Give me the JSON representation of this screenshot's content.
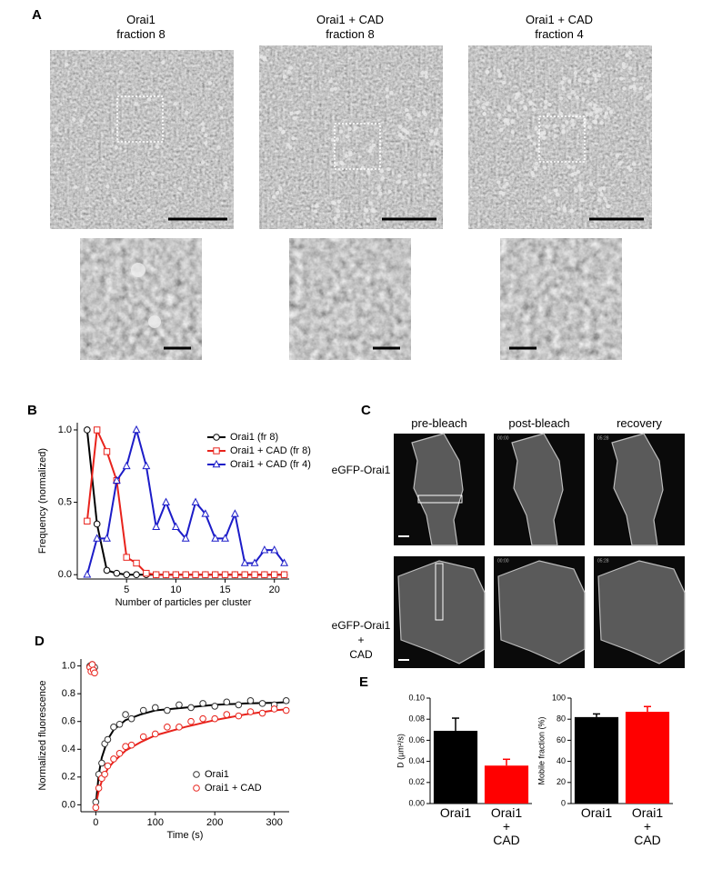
{
  "panel_a": {
    "label": "A",
    "titles": [
      "Orai1\nfraction 8",
      "Orai1 + CAD\nfraction 8",
      "Orai1 + CAD\nfraction 4"
    ]
  },
  "panel_c": {
    "label": "C",
    "columns": [
      "pre-bleach",
      "post-bleach",
      "recovery"
    ],
    "rows": [
      "eGFP-Orai1",
      "eGFP-Orai1\n+\nCAD"
    ],
    "timestamps": [
      "00:00",
      "05:28"
    ]
  },
  "chart_data": [
    {
      "type": "line",
      "panel_label": "B",
      "x_label": "Number of particles per cluster",
      "y_label": "Frequency (normalized)",
      "x": [
        1,
        2,
        3,
        4,
        5,
        6,
        7,
        8,
        9,
        10,
        11,
        12,
        13,
        14,
        15,
        16,
        17,
        18,
        19,
        20,
        21
      ],
      "series": [
        {
          "name": "Orai1 (fr 8)",
          "color": "#000000",
          "marker": "circle",
          "values": [
            1.0,
            0.35,
            0.03,
            0.01,
            0,
            0,
            0,
            0,
            0,
            0,
            0,
            0,
            0,
            0,
            0,
            0,
            0,
            0,
            0,
            0,
            0
          ]
        },
        {
          "name": "Orai1 + CAD (fr 8)",
          "color": "#e8231c",
          "marker": "square",
          "values": [
            0.37,
            1.0,
            0.85,
            0.65,
            0.12,
            0.08,
            0.01,
            0,
            0,
            0,
            0,
            0,
            0,
            0,
            0,
            0,
            0,
            0,
            0,
            0,
            0
          ]
        },
        {
          "name": "Orai1 + CAD (fr 4)",
          "color": "#1c1cc8",
          "marker": "triangle",
          "values": [
            0,
            0.25,
            0.25,
            0.65,
            0.75,
            1.0,
            0.75,
            0.33,
            0.5,
            0.33,
            0.25,
            0.5,
            0.42,
            0.25,
            0.25,
            0.42,
            0.08,
            0.08,
            0.17,
            0.17,
            0.08
          ]
        }
      ],
      "xlim": [
        0,
        21.5
      ],
      "xticks": [
        5,
        10,
        15,
        20
      ],
      "ylim": [
        -0.03,
        1.05
      ],
      "yticks": [
        {
          "value": 0,
          "label": "0.0"
        },
        {
          "value": 0.5,
          "label": "0.5"
        },
        {
          "value": 1,
          "label": "1.0"
        }
      ],
      "legend": "upper right"
    },
    {
      "type": "scatter",
      "panel_label": "D",
      "x_label": "Time (s)",
      "y_label": "Normalized fluorescence",
      "series": [
        {
          "name": "Orai1",
          "color": "#333333",
          "marker": "circle",
          "x": [
            -10,
            -8,
            -6,
            -4,
            -2,
            0,
            5,
            10,
            15,
            20,
            30,
            40,
            50,
            60,
            80,
            100,
            120,
            140,
            160,
            180,
            200,
            220,
            240,
            260,
            280,
            300,
            320
          ],
          "values": [
            1.0,
            0.98,
            1.01,
            0.97,
            0.99,
            0.02,
            0.22,
            0.3,
            0.44,
            0.47,
            0.56,
            0.58,
            0.65,
            0.62,
            0.68,
            0.7,
            0.68,
            0.72,
            0.7,
            0.73,
            0.71,
            0.74,
            0.72,
            0.75,
            0.73,
            0.72,
            0.75
          ]
        },
        {
          "name": "Orai1 + CAD",
          "color": "#e8231c",
          "marker": "circle",
          "x": [
            -10,
            -8,
            -6,
            -4,
            -2,
            0,
            5,
            10,
            15,
            20,
            30,
            40,
            50,
            60,
            80,
            100,
            120,
            140,
            160,
            180,
            200,
            220,
            240,
            260,
            280,
            300,
            320
          ],
          "values": [
            0.99,
            0.96,
            1.01,
            0.97,
            0.95,
            -0.02,
            0.12,
            0.19,
            0.22,
            0.28,
            0.33,
            0.37,
            0.42,
            0.43,
            0.49,
            0.51,
            0.56,
            0.56,
            0.6,
            0.62,
            0.62,
            0.65,
            0.64,
            0.67,
            0.66,
            0.69,
            0.68
          ]
        }
      ],
      "fits": [
        {
          "color": "#000000",
          "x": [
            0,
            5,
            10,
            20,
            30,
            50,
            75,
            100,
            150,
            200,
            250,
            300,
            325
          ],
          "values": [
            0,
            0.22,
            0.34,
            0.47,
            0.54,
            0.61,
            0.65,
            0.68,
            0.7,
            0.72,
            0.73,
            0.735,
            0.74
          ]
        },
        {
          "color": "#e8231c",
          "x": [
            0,
            5,
            10,
            20,
            30,
            50,
            75,
            100,
            150,
            200,
            250,
            300,
            325
          ],
          "values": [
            0,
            0.1,
            0.17,
            0.26,
            0.31,
            0.39,
            0.45,
            0.5,
            0.56,
            0.61,
            0.65,
            0.68,
            0.69
          ]
        }
      ],
      "xlim": [
        -25,
        325
      ],
      "xticks": [
        0,
        100,
        200,
        300
      ],
      "ylim": [
        -0.05,
        1.05
      ],
      "yticks": [
        {
          "value": 0,
          "label": "0.0"
        },
        {
          "value": 0.2,
          "label": "0.2"
        },
        {
          "value": 0.4,
          "label": "0.4"
        },
        {
          "value": 0.6,
          "label": "0.6"
        },
        {
          "value": 0.8,
          "label": "0.8"
        },
        {
          "value": 1,
          "label": "1.0"
        }
      ],
      "legend": "lower right"
    },
    {
      "type": "bar",
      "panel_label": "E",
      "y_label": "D (µm²/s)",
      "categories": [
        "Orai1",
        "Orai1\n+\nCAD"
      ],
      "values": [
        0.069,
        0.036
      ],
      "errors": [
        0.012,
        0.006
      ],
      "colors": [
        "#000000",
        "#ff0000"
      ],
      "ylim": [
        0,
        0.1
      ],
      "yticks": [
        {
          "value": 0,
          "label": "0.00"
        },
        {
          "value": 0.02,
          "label": "0.02"
        },
        {
          "value": 0.04,
          "label": "0.04"
        },
        {
          "value": 0.06,
          "label": "0.06"
        },
        {
          "value": 0.08,
          "label": "0.08"
        },
        {
          "value": 0.1,
          "label": "0.10"
        }
      ]
    },
    {
      "type": "bar",
      "y_label": "Mobile fraction (%)",
      "categories": [
        "Orai1",
        "Orai1\n+\nCAD"
      ],
      "values": [
        82,
        87
      ],
      "errors": [
        3,
        5
      ],
      "colors": [
        "#000000",
        "#ff0000"
      ],
      "ylim": [
        0,
        100
      ],
      "yticks": [
        0,
        20,
        40,
        60,
        80,
        100
      ]
    }
  ]
}
